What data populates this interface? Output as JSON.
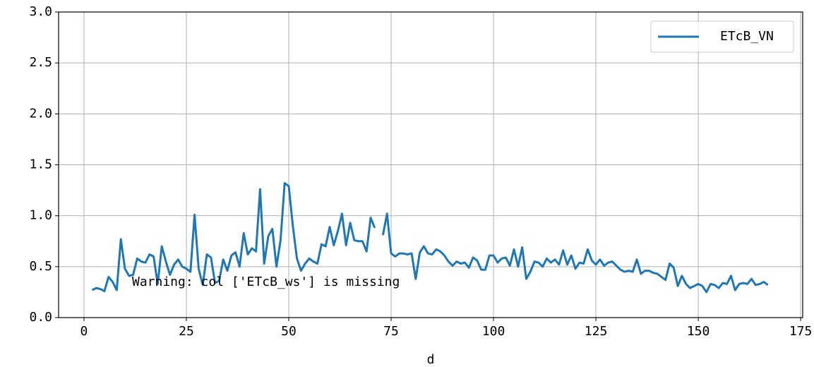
{
  "chart_data": {
    "type": "line",
    "xlabel": "d",
    "annotation": "Warning: col ['ETcB_ws'] is missing",
    "x": [
      2,
      3,
      4,
      5,
      6,
      7,
      8,
      9,
      10,
      11,
      12,
      13,
      14,
      15,
      16,
      17,
      18,
      19,
      20,
      21,
      22,
      23,
      24,
      25,
      26,
      27,
      28,
      29,
      30,
      31,
      32,
      33,
      34,
      35,
      36,
      37,
      38,
      39,
      40,
      41,
      42,
      43,
      44,
      45,
      46,
      47,
      48,
      49,
      50,
      51,
      52,
      53,
      54,
      55,
      56,
      57,
      58,
      59,
      60,
      61,
      62,
      63,
      64,
      65,
      66,
      67,
      68,
      69,
      70,
      71,
      72,
      73,
      74,
      75,
      76,
      77,
      78,
      79,
      80,
      81,
      82,
      83,
      84,
      85,
      86,
      87,
      88,
      89,
      90,
      91,
      92,
      93,
      94,
      95,
      96,
      97,
      98,
      99,
      100,
      101,
      102,
      103,
      104,
      105,
      106,
      107,
      108,
      109,
      110,
      111,
      112,
      113,
      114,
      115,
      116,
      117,
      118,
      119,
      120,
      121,
      122,
      123,
      124,
      125,
      126,
      127,
      128,
      129,
      130,
      131,
      132,
      133,
      134,
      135,
      136,
      137,
      138,
      139,
      140,
      141,
      142,
      143,
      144,
      145,
      146,
      147,
      148,
      149,
      150,
      151,
      152,
      153,
      154,
      155,
      156,
      157,
      158,
      159,
      160,
      161,
      162,
      163,
      164,
      165,
      166,
      167
    ],
    "series": [
      {
        "name": "ETcB_VN",
        "color": "#1f77b4",
        "values": [
          0.27,
          0.29,
          0.28,
          0.26,
          0.4,
          0.35,
          0.27,
          0.77,
          0.48,
          0.41,
          0.42,
          0.58,
          0.55,
          0.54,
          0.62,
          0.6,
          0.33,
          0.7,
          0.55,
          0.42,
          0.52,
          0.57,
          0.5,
          0.48,
          0.45,
          1.01,
          0.48,
          0.32,
          0.62,
          0.59,
          0.34,
          0.36,
          0.57,
          0.46,
          0.61,
          0.64,
          0.5,
          0.83,
          0.62,
          0.68,
          0.65,
          1.26,
          0.53,
          0.8,
          0.87,
          0.5,
          0.76,
          1.32,
          1.29,
          0.9,
          0.58,
          0.46,
          0.53,
          0.58,
          0.55,
          0.53,
          0.72,
          0.7,
          0.89,
          0.71,
          0.85,
          1.02,
          0.71,
          0.93,
          0.76,
          0.75,
          0.75,
          0.65,
          0.98,
          0.88,
          null,
          0.81,
          1.02,
          0.63,
          0.6,
          0.63,
          0.63,
          0.62,
          0.63,
          0.38,
          0.64,
          0.7,
          0.63,
          0.62,
          0.67,
          0.65,
          0.61,
          0.55,
          0.51,
          0.55,
          0.53,
          0.54,
          0.49,
          0.59,
          0.56,
          0.47,
          0.47,
          0.61,
          0.61,
          0.54,
          0.58,
          0.59,
          0.51,
          0.67,
          0.5,
          0.69,
          0.38,
          0.45,
          0.55,
          0.54,
          0.5,
          0.58,
          0.54,
          0.57,
          0.52,
          0.66,
          0.52,
          0.61,
          0.48,
          0.54,
          0.53,
          0.67,
          0.56,
          0.52,
          0.57,
          0.51,
          0.54,
          0.55,
          0.51,
          0.47,
          0.45,
          0.46,
          0.45,
          0.57,
          0.43,
          0.46,
          0.46,
          0.44,
          0.43,
          0.4,
          0.37,
          0.53,
          0.49,
          0.31,
          0.41,
          0.33,
          0.29,
          0.31,
          0.33,
          0.31,
          0.25,
          0.33,
          0.32,
          0.29,
          0.34,
          0.33,
          0.41,
          0.27,
          0.33,
          0.34,
          0.33,
          0.38,
          0.32,
          0.33,
          0.35,
          0.32
        ]
      }
    ],
    "xlim": [
      -6.2,
      175.5
    ],
    "ylim": [
      0,
      3
    ],
    "xticks": [
      0,
      25,
      50,
      75,
      100,
      125,
      150,
      175
    ],
    "yticks": [
      {
        "value": 0,
        "label": "0.0"
      },
      {
        "value": 0.5,
        "label": "0.5"
      },
      {
        "value": 1,
        "label": "1.0"
      },
      {
        "value": 1.5,
        "label": "1.5"
      },
      {
        "value": 2,
        "label": "2.0"
      },
      {
        "value": 2.5,
        "label": "2.5"
      },
      {
        "value": 3,
        "label": "3.0"
      }
    ],
    "grid": true,
    "legend": "upper right"
  }
}
